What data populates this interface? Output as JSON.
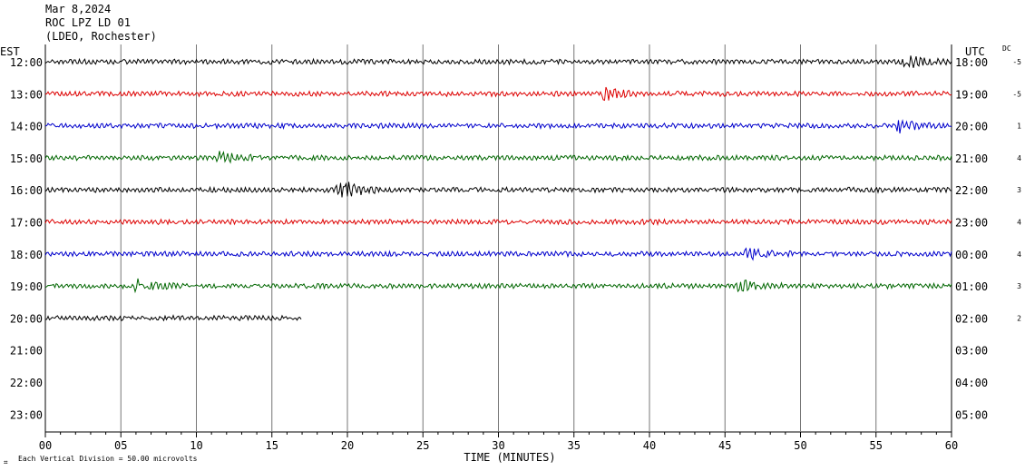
{
  "header": {
    "date": "Mar 8,2024",
    "station": "ROC LPZ LD 01",
    "network": "(LDEO, Rochester)"
  },
  "chart_data": {
    "type": "line",
    "title": "Mar 8,2024",
    "left_axis_label": "EST",
    "right_axis_label": "UTC",
    "dc_label": "DC",
    "xlabel": "TIME (MINUTES)",
    "xlim": [
      0,
      60
    ],
    "x_ticks": [
      "00",
      "05",
      "10",
      "15",
      "20",
      "25",
      "30",
      "35",
      "40",
      "45",
      "50",
      "55",
      "60"
    ],
    "footer_note": "Each Vertical Division =   50.00 microvolts",
    "colors": [
      "#000000",
      "#dd0000",
      "#0000cc",
      "#006600"
    ],
    "rows": [
      {
        "est": "12:00",
        "utc": "18:00",
        "dc": "-5",
        "end_minute": 60,
        "events": [
          {
            "minute": 57,
            "amp": 1.6
          }
        ]
      },
      {
        "est": "13:00",
        "utc": "19:00",
        "dc": "-5",
        "end_minute": 60,
        "events": [
          {
            "minute": 37,
            "amp": 1.5
          }
        ]
      },
      {
        "est": "14:00",
        "utc": "20:00",
        "dc": "1",
        "end_minute": 60,
        "events": [
          {
            "minute": 56.5,
            "amp": 1.6
          }
        ]
      },
      {
        "est": "15:00",
        "utc": "21:00",
        "dc": "4",
        "end_minute": 60,
        "events": [
          {
            "minute": 11.5,
            "amp": 1.5
          }
        ]
      },
      {
        "est": "16:00",
        "utc": "22:00",
        "dc": "3",
        "end_minute": 60,
        "events": [
          {
            "minute": 19.5,
            "amp": 2.6
          }
        ]
      },
      {
        "est": "17:00",
        "utc": "23:00",
        "dc": "4",
        "end_minute": 60,
        "events": []
      },
      {
        "est": "18:00",
        "utc": "00:00",
        "dc": "4",
        "end_minute": 60,
        "events": [
          {
            "minute": 46.5,
            "amp": 1.5
          }
        ]
      },
      {
        "est": "19:00",
        "utc": "01:00",
        "dc": "3",
        "end_minute": 60,
        "events": [
          {
            "minute": 6,
            "amp": 1.7
          },
          {
            "minute": 46,
            "amp": 1.5
          }
        ]
      },
      {
        "est": "20:00",
        "utc": "02:00",
        "dc": "2",
        "end_minute": 17,
        "events": []
      },
      {
        "est": "21:00",
        "utc": "03:00",
        "dc": "",
        "end_minute": 0,
        "events": []
      },
      {
        "est": "22:00",
        "utc": "04:00",
        "dc": "",
        "end_minute": 0,
        "events": []
      },
      {
        "est": "23:00",
        "utc": "05:00",
        "dc": "",
        "end_minute": 0,
        "events": []
      }
    ]
  }
}
